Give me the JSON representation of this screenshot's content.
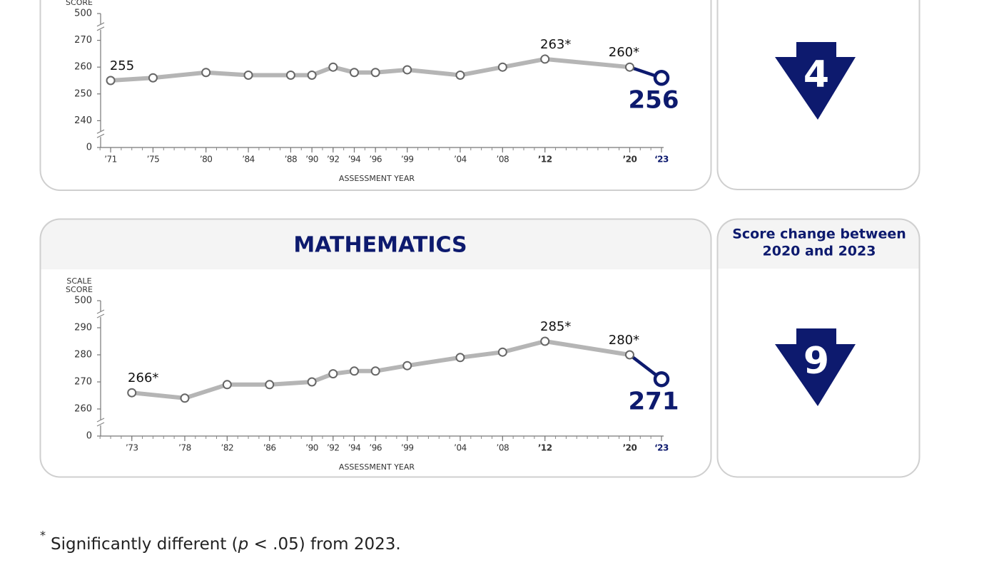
{
  "chart_data": [
    {
      "type": "line",
      "ylabel_lines": [
        "SCORE"
      ],
      "xlabel": "ASSESSMENT YEAR",
      "x": [
        1971,
        1975,
        1980,
        1984,
        1988,
        1990,
        1992,
        1994,
        1996,
        1999,
        2004,
        2008,
        2012,
        2020,
        2023
      ],
      "series": [
        {
          "color": "#b5b5b5",
          "highlight_color": "#0d1a6e",
          "values": [
            255,
            256,
            258,
            257,
            257,
            257,
            260,
            258,
            258,
            259,
            257,
            260,
            263,
            260,
            256
          ],
          "value_labels": [
            "255",
            null,
            null,
            null,
            null,
            null,
            null,
            null,
            null,
            null,
            null,
            null,
            "263*",
            "260*",
            "256"
          ]
        }
      ],
      "xlim": [
        1970,
        2023
      ],
      "xticks": [
        {
          "value": 1971,
          "label": "’71"
        },
        {
          "value": 1975,
          "label": "’75"
        },
        {
          "value": 1980,
          "label": "’80"
        },
        {
          "value": 1984,
          "label": "’84"
        },
        {
          "value": 1988,
          "label": "’88"
        },
        {
          "value": 1990,
          "label": "’90"
        },
        {
          "value": 1992,
          "label": "’92"
        },
        {
          "value": 1994,
          "label": "’94"
        },
        {
          "value": 1996,
          "label": "’96"
        },
        {
          "value": 1999,
          "label": "’99"
        },
        {
          "value": 2004,
          "label": "’04"
        },
        {
          "value": 2008,
          "label": "’08"
        },
        {
          "value": 2012,
          "label": "’12"
        },
        {
          "value": 2020,
          "label": "’20"
        },
        {
          "value": 2023,
          "label": "‘23"
        }
      ],
      "ylim": [
        0,
        500
      ],
      "yticks": [
        0,
        240,
        250,
        260,
        270,
        500
      ],
      "ybreak": true
    },
    {
      "type": "line",
      "title": "MATHEMATICS",
      "ylabel_lines": [
        "SCALE",
        "SCORE"
      ],
      "xlabel": "ASSESSMENT YEAR",
      "x": [
        1973,
        1978,
        1982,
        1986,
        1990,
        1992,
        1994,
        1996,
        1999,
        2004,
        2008,
        2012,
        2020,
        2023
      ],
      "series": [
        {
          "color": "#b5b5b5",
          "highlight_color": "#0d1a6e",
          "values": [
            266,
            264,
            269,
            269,
            270,
            273,
            274,
            274,
            276,
            279,
            281,
            285,
            280,
            271
          ],
          "value_labels": [
            "266*",
            null,
            null,
            null,
            null,
            null,
            null,
            null,
            null,
            null,
            null,
            "285*",
            "280*",
            "271"
          ]
        }
      ],
      "xlim": [
        1970,
        2023
      ],
      "xticks": [
        {
          "value": 1973,
          "label": "’73"
        },
        {
          "value": 1978,
          "label": "’78"
        },
        {
          "value": 1982,
          "label": "’82"
        },
        {
          "value": 1986,
          "label": "’86"
        },
        {
          "value": 1990,
          "label": "’90"
        },
        {
          "value": 1992,
          "label": "’92"
        },
        {
          "value": 1994,
          "label": "’94"
        },
        {
          "value": 1996,
          "label": "’96"
        },
        {
          "value": 1999,
          "label": "’99"
        },
        {
          "value": 2004,
          "label": "’04"
        },
        {
          "value": 2008,
          "label": "’08"
        },
        {
          "value": 2012,
          "label": "’12"
        },
        {
          "value": 2020,
          "label": "’20"
        },
        {
          "value": 2023,
          "label": "‘23"
        }
      ],
      "ylim": [
        0,
        500
      ],
      "yticks": [
        0,
        260,
        270,
        280,
        290,
        500
      ],
      "ybreak": true
    }
  ],
  "score_changes": [
    {
      "value": 4
    },
    {
      "title_lines": [
        "Score change between",
        "2020 and 2023"
      ],
      "value": 9
    }
  ],
  "footnote": {
    "marker": "*",
    "text_before": "Significantly different (",
    "italic": "p",
    "text_after": " < .05) from 2023."
  }
}
